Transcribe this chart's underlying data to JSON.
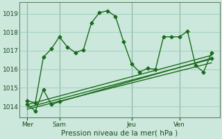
{
  "bg_color": "#cce8dd",
  "grid_color": "#99ccbb",
  "line_color": "#1a6b1a",
  "title": "Pression niveau de la mer( hPa )",
  "ylabel_ticks": [
    1014,
    1015,
    1016,
    1017,
    1018,
    1019
  ],
  "ylim": [
    1013.4,
    1019.6
  ],
  "day_labels": [
    "Mer",
    "Sam",
    "Jeu",
    "Ven"
  ],
  "day_positions": [
    0.5,
    4.5,
    13.5,
    19.5
  ],
  "xlim": [
    -0.5,
    24.5
  ],
  "series1_x": [
    0.5,
    1.5,
    2.5,
    3.5,
    4.5,
    5.5,
    6.5,
    7.5,
    8.5,
    9.5,
    10.5,
    11.5,
    12.5,
    13.5,
    14.5,
    15.5,
    16.5,
    17.5,
    18.5,
    19.5,
    20.5,
    21.5,
    22.5,
    23.5
  ],
  "series1_y": [
    1014.3,
    1014.2,
    1016.65,
    1017.1,
    1017.75,
    1017.2,
    1016.9,
    1017.05,
    1018.5,
    1019.05,
    1019.15,
    1018.85,
    1017.5,
    1016.3,
    1015.85,
    1016.05,
    1016.0,
    1017.75,
    1017.75,
    1017.75,
    1018.05,
    1016.2,
    1015.85,
    1016.9
  ],
  "series2_x": [
    0.5,
    1.5,
    2.5,
    3.5,
    4.5,
    23.5
  ],
  "series2_y": [
    1014.1,
    1013.75,
    1014.9,
    1014.1,
    1014.25,
    1016.6
  ],
  "series3_x": [
    0.5,
    23.5
  ],
  "series3_y": [
    1014.1,
    1016.75
  ],
  "series4_x": [
    0.5,
    23.5
  ],
  "series4_y": [
    1013.95,
    1016.55
  ],
  "series5_x": [
    0.5,
    23.5
  ],
  "series5_y": [
    1013.85,
    1016.35
  ],
  "marker_style": "D",
  "marker_size": 2.5,
  "linewidth": 1.0
}
